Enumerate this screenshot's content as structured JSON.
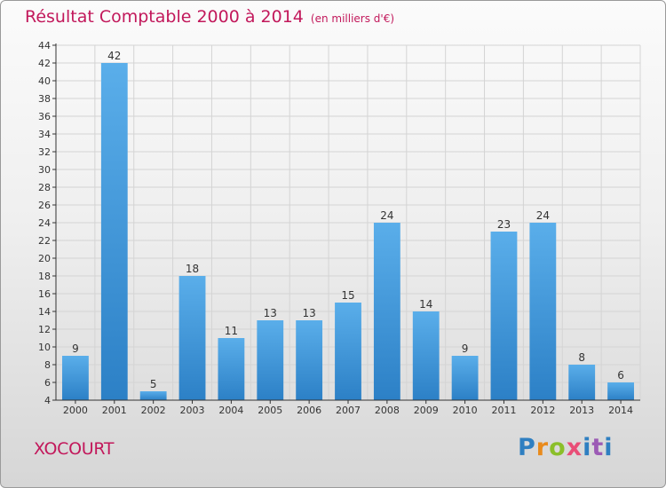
{
  "header": {
    "title": "Résultat Comptable 2000 à 2014",
    "unit": "(en milliers d'€)"
  },
  "footer": {
    "commune": "XOCOURT",
    "brand": "Proxiti"
  },
  "colors": {
    "bar_top": "#5aaeea",
    "bar_bottom": "#2c80c6",
    "title": "#c2185b"
  },
  "chart_data": {
    "type": "bar",
    "title": "Résultat Comptable 2000 à 2014",
    "subtitle": "(en milliers d'€)",
    "xlabel": "",
    "ylabel": "",
    "categories": [
      "2000",
      "2001",
      "2002",
      "2003",
      "2004",
      "2005",
      "2006",
      "2007",
      "2008",
      "2009",
      "2010",
      "2011",
      "2012",
      "2013",
      "2014"
    ],
    "values": [
      9,
      42,
      5,
      18,
      11,
      13,
      13,
      15,
      24,
      14,
      9,
      23,
      24,
      8,
      6
    ],
    "ylim": [
      4,
      44
    ],
    "yticks": [
      4,
      6,
      8,
      10,
      12,
      14,
      16,
      18,
      20,
      22,
      24,
      26,
      28,
      30,
      32,
      34,
      36,
      38,
      40,
      42,
      44
    ],
    "grid": true,
    "data_labels": true
  }
}
